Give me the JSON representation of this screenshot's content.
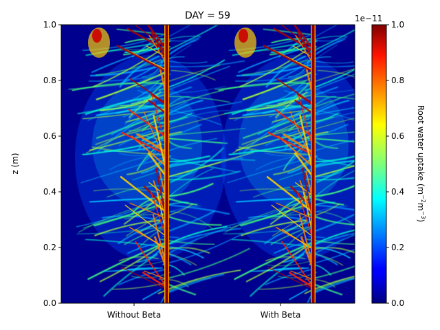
{
  "chart_data": {
    "type": "heatmap",
    "title": "DAY = 59",
    "ylabel": "z (m)",
    "ylim": [
      0,
      1.0
    ],
    "yticks": [
      "0.0",
      "0.2",
      "0.4",
      "0.6",
      "0.8",
      "1.0"
    ],
    "panels": [
      {
        "label": "Without Beta"
      },
      {
        "label": "With Beta"
      }
    ],
    "colorbar": {
      "label": "Root water uptake (m$^{-2}$m$^{-3}$)",
      "label_main": "Root water uptake (m",
      "label_sup1": "−2",
      "label_mid": "m",
      "label_sup2": "−3",
      "label_end": ")",
      "offset_text": "1e−11",
      "range": [
        0,
        1.0
      ],
      "ticks": [
        "0.0",
        "0.2",
        "0.4",
        "0.6",
        "0.8",
        "1.0"
      ],
      "colormap": "jet"
    }
  }
}
